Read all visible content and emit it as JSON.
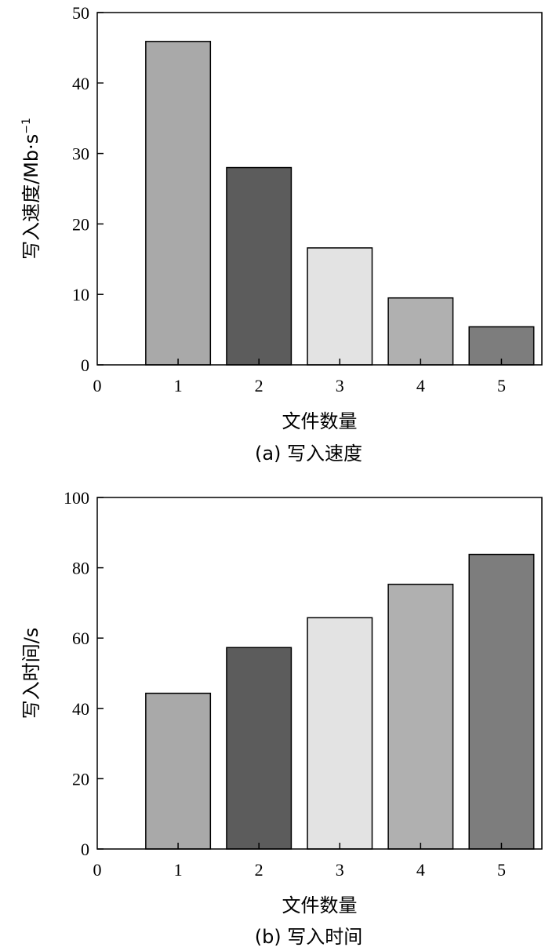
{
  "chart_data": [
    {
      "type": "bar",
      "categories": [
        "1",
        "2",
        "3",
        "4",
        "5"
      ],
      "values": [
        45.9,
        28.0,
        16.6,
        9.5,
        5.4
      ],
      "colors": [
        "#a9a9a9",
        "#5c5c5c",
        "#e3e3e3",
        "#b0b0b0",
        "#7d7d7d"
      ],
      "xlabel": "文件数量",
      "ylabel_main": "写入速度/Mb·s",
      "ylabel_sup": "−1",
      "caption": "(a) 写入速度",
      "xlim": [
        0,
        5.5
      ],
      "ylim": [
        0,
        50
      ],
      "xticks": [
        "0",
        "1",
        "2",
        "3",
        "4",
        "5"
      ],
      "yticks": [
        "0",
        "10",
        "20",
        "30",
        "40",
        "50"
      ],
      "grid": false
    },
    {
      "type": "bar",
      "categories": [
        "1",
        "2",
        "3",
        "4",
        "5"
      ],
      "values": [
        44.3,
        57.3,
        65.8,
        75.3,
        83.8
      ],
      "colors": [
        "#a9a9a9",
        "#5c5c5c",
        "#e3e3e3",
        "#b0b0b0",
        "#7d7d7d"
      ],
      "xlabel": "文件数量",
      "ylabel_main": "写入时间/s",
      "ylabel_sup": "",
      "caption": "(b) 写入时间",
      "xlim": [
        0,
        5.5
      ],
      "ylim": [
        0,
        100
      ],
      "xticks": [
        "0",
        "1",
        "2",
        "3",
        "4",
        "5"
      ],
      "yticks": [
        "0",
        "20",
        "40",
        "60",
        "80",
        "100"
      ],
      "grid": false
    }
  ]
}
